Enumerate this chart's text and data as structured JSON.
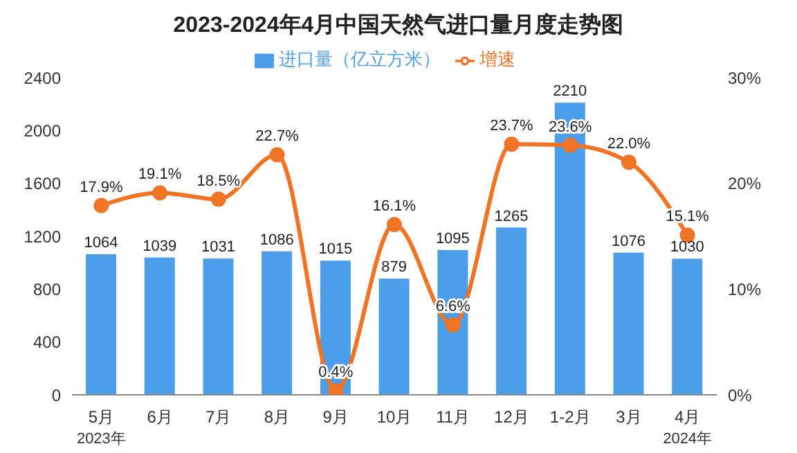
{
  "chart_data": {
    "type": "bar",
    "title": "2023-2024年4月中国天然气进口量月度走势图",
    "categories": [
      "5月",
      "6月",
      "7月",
      "8月",
      "9月",
      "10月",
      "11月",
      "12月",
      "1-2月",
      "3月",
      "4月"
    ],
    "series": [
      {
        "name": "进口量（亿立方米）",
        "color": "#4a9eea",
        "values": [
          1064,
          1039,
          1031,
          1086,
          1015,
          879,
          1095,
          1265,
          2210,
          1076,
          1030
        ]
      },
      {
        "name": "增速",
        "type": "line",
        "axis": "y2",
        "color": "#f07424",
        "values": [
          17.9,
          19.1,
          18.5,
          22.7,
          0.4,
          16.1,
          6.6,
          23.7,
          23.6,
          22.0,
          15.1
        ],
        "value_labels": [
          "17.9%",
          "19.1%",
          "18.5%",
          "22.7%",
          "0.4%",
          "16.1%",
          "6.6%",
          "23.7%",
          "23.6%",
          "22.0%",
          "15.1%"
        ]
      }
    ],
    "data_labels": true,
    "ylim": [
      0,
      2400
    ],
    "yticks": [
      0,
      400,
      800,
      1200,
      1600,
      2000,
      2400
    ],
    "y2lim": [
      0,
      30
    ],
    "y2ticks": [
      {
        "value": 0,
        "label": "0%"
      },
      {
        "value": 10,
        "label": "10%"
      },
      {
        "value": 20,
        "label": "20%"
      },
      {
        "value": 30,
        "label": "30%"
      }
    ],
    "marker": "circle",
    "line_style": "solid",
    "legend": "top",
    "grid": false,
    "annotations": [
      "2023年",
      "2024年"
    ]
  }
}
